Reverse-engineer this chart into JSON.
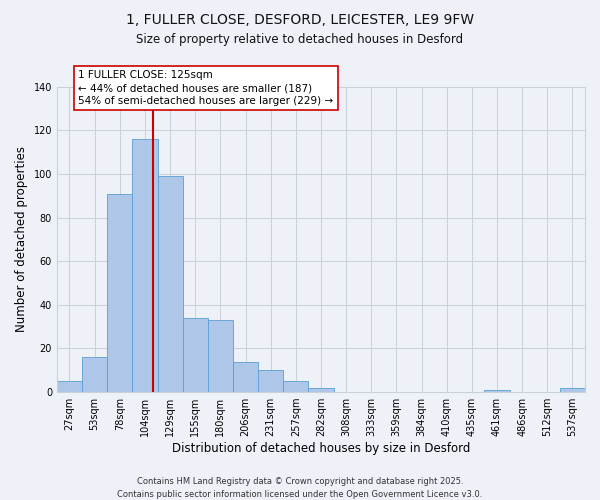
{
  "title_line1": "1, FULLER CLOSE, DESFORD, LEICESTER, LE9 9FW",
  "title_line2": "Size of property relative to detached houses in Desford",
  "xlabel": "Distribution of detached houses by size in Desford",
  "ylabel": "Number of detached properties",
  "bar_labels": [
    "27sqm",
    "53sqm",
    "78sqm",
    "104sqm",
    "129sqm",
    "155sqm",
    "180sqm",
    "206sqm",
    "231sqm",
    "257sqm",
    "282sqm",
    "308sqm",
    "333sqm",
    "359sqm",
    "384sqm",
    "410sqm",
    "435sqm",
    "461sqm",
    "486sqm",
    "512sqm",
    "537sqm"
  ],
  "bar_values": [
    5,
    16,
    91,
    116,
    99,
    34,
    33,
    14,
    10,
    5,
    2,
    0,
    0,
    0,
    0,
    0,
    0,
    1,
    0,
    0,
    2
  ],
  "bar_color": "#aec6e8",
  "bar_edgecolor": "#5a9fd4",
  "ylim": [
    0,
    140
  ],
  "yticks": [
    0,
    20,
    40,
    60,
    80,
    100,
    120,
    140
  ],
  "property_line_color": "#cc0000",
  "annotation_title": "1 FULLER CLOSE: 125sqm",
  "annotation_line1": "← 44% of detached houses are smaller (187)",
  "annotation_line2": "54% of semi-detached houses are larger (229) →",
  "annotation_box_facecolor": "#ffffff",
  "annotation_box_edgecolor": "#cc0000",
  "footer_line1": "Contains HM Land Registry data © Crown copyright and database right 2025.",
  "footer_line2": "Contains public sector information licensed under the Open Government Licence v3.0.",
  "background_color": "#eef2f8",
  "plot_background_color": "#eef2f8",
  "grid_color": "#c8d0dc",
  "title1_fontsize": 10,
  "title2_fontsize": 8.5,
  "xlabel_fontsize": 8.5,
  "ylabel_fontsize": 8.5,
  "tick_fontsize": 7,
  "footer_fontsize": 6,
  "annotation_fontsize": 7.5
}
